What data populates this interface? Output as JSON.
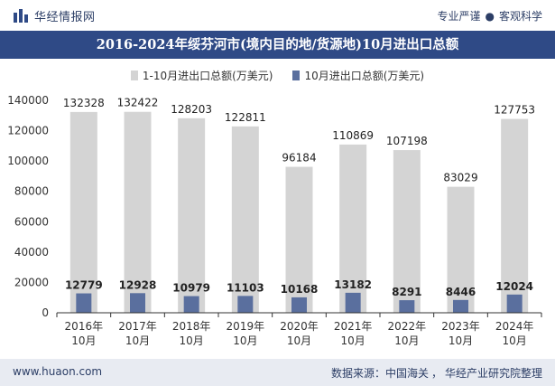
{
  "header": {
    "brand_name": "华经情报网",
    "slogan_left": "专业严谨",
    "slogan_right": "客观科学",
    "logo_icon": "bar-chart-logo-icon"
  },
  "colors": {
    "title_bg": "#2f4a86",
    "series1": "#d4d4d4",
    "series2": "#5a6f9e",
    "footer_bg": "#e8ebf2"
  },
  "footer": {
    "website": "www.huaon.com",
    "source_label": "数据来源：",
    "source_1": "中国海关",
    "source_2": "华经产业研究院整理"
  },
  "chart_data": {
    "type": "bar",
    "title": "2016-2024年绥芬河市(境内目的地/货源地)10月进出口总额",
    "categories": [
      [
        "2016年",
        "10月"
      ],
      [
        "2017年",
        "10月"
      ],
      [
        "2018年",
        "10月"
      ],
      [
        "2019年",
        "10月"
      ],
      [
        "2020年",
        "10月"
      ],
      [
        "2021年",
        "10月"
      ],
      [
        "2022年",
        "10月"
      ],
      [
        "2023年",
        "10月"
      ],
      [
        "2024年",
        "10月"
      ]
    ],
    "series": [
      {
        "name": "1-10月进出口总额(万美元)",
        "values": [
          132328,
          132422,
          128203,
          122811,
          96184,
          110869,
          107198,
          83029,
          127753
        ]
      },
      {
        "name": "10月进出口总额(万美元)",
        "values": [
          12779,
          12928,
          10979,
          11103,
          10168,
          13182,
          8291,
          8446,
          12024
        ]
      }
    ],
    "y_ticks": [
      "0",
      "20000",
      "40000",
      "60000",
      "80000",
      "100000",
      "120000",
      "140000"
    ],
    "ylim": [
      0,
      140000
    ],
    "grid": false,
    "legend_position": "top-center"
  }
}
